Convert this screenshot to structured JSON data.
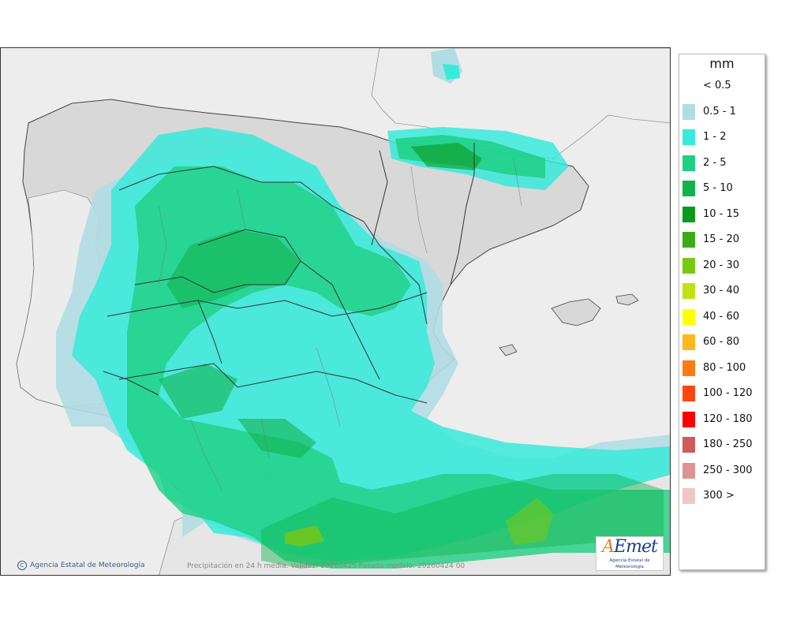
{
  "map": {
    "credit": "Agencia Estatal de Meteorología",
    "caption": "Precipitación en 24 h media. Validez: 20260425 Pasada modelo: 20260424 00",
    "logo_text": "AEmet",
    "logo_subtitle": "Agencia Estatal de Meteorología"
  },
  "legend": {
    "unit": "mm",
    "items": [
      {
        "label": "< 0.5",
        "color": "#ffffff"
      },
      {
        "label": "0.5 - 1",
        "color": "#b0dde3"
      },
      {
        "label": "1 - 2",
        "color": "#38eada"
      },
      {
        "label": "2 - 5",
        "color": "#1fcf82"
      },
      {
        "label": "5 - 10",
        "color": "#10b34f"
      },
      {
        "label": "10 - 15",
        "color": "#0a9a1e"
      },
      {
        "label": "15 - 20",
        "color": "#3faa17"
      },
      {
        "label": "20 - 30",
        "color": "#7bc812"
      },
      {
        "label": "30 - 40",
        "color": "#bfe312"
      },
      {
        "label": "40 - 60",
        "color": "#ffff00"
      },
      {
        "label": "60 - 80",
        "color": "#ffb81c"
      },
      {
        "label": "80 - 100",
        "color": "#ff7a12"
      },
      {
        "label": "100 - 120",
        "color": "#ff4612"
      },
      {
        "label": "120 - 180",
        "color": "#ff0000"
      },
      {
        "label": "180 - 250",
        "color": "#cf5a5a"
      },
      {
        "label": "250 - 300",
        "color": "#de9494"
      },
      {
        "label": "300 >",
        "color": "#efc6c6"
      }
    ]
  }
}
